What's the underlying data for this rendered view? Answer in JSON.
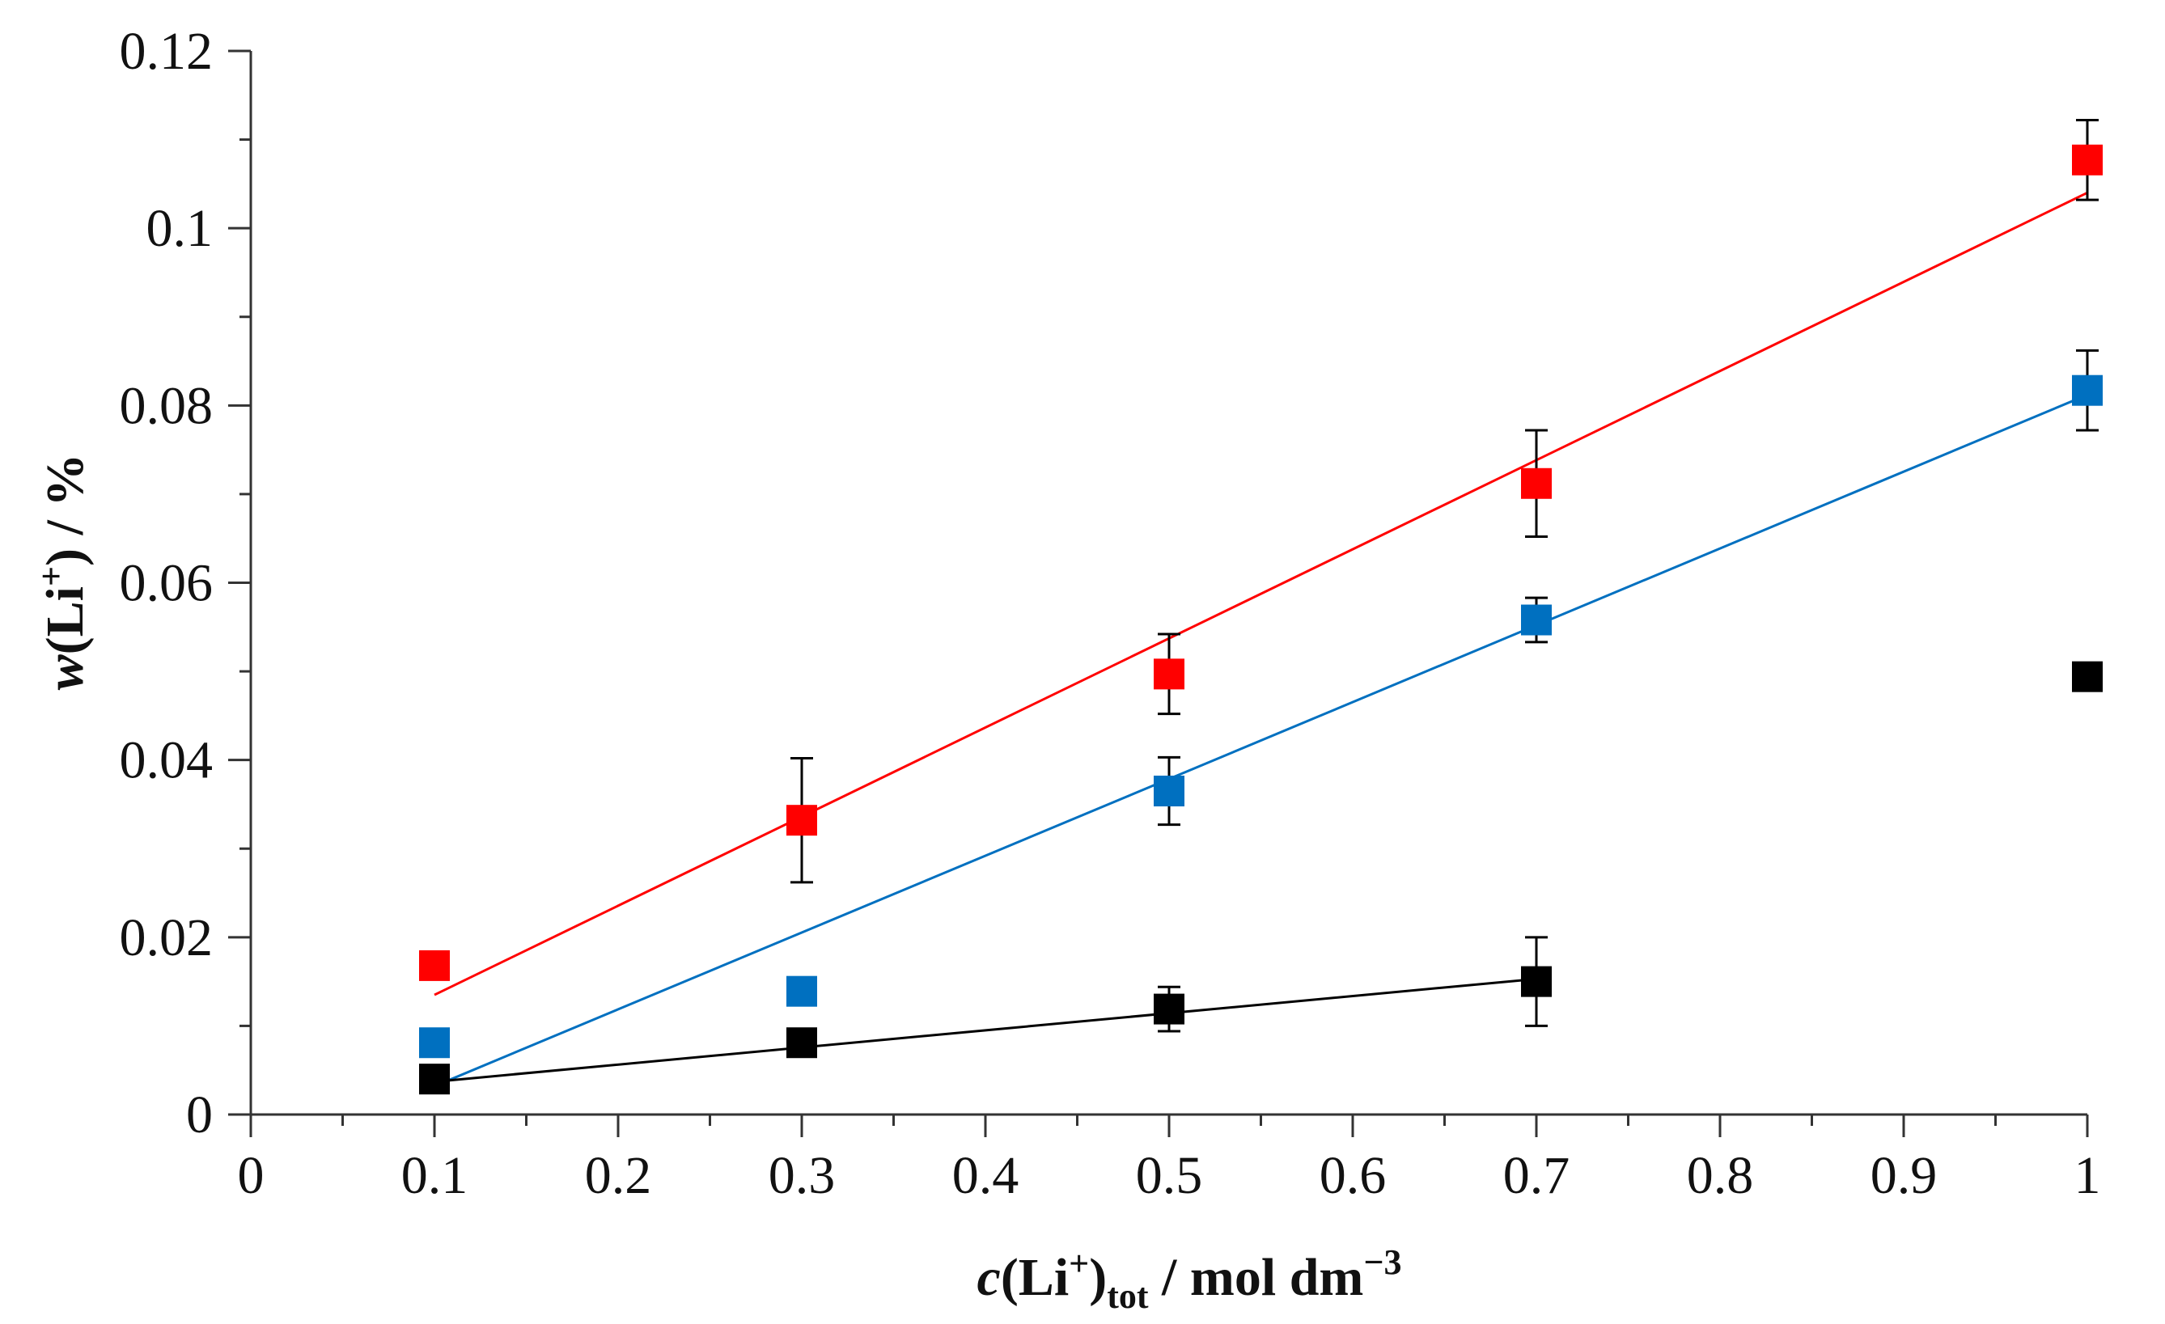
{
  "chart_data": {
    "type": "scatter",
    "title": "",
    "xlabel": {
      "var": "c",
      "open": "(Li",
      "sup": "+",
      "close": ")",
      "sub": "tot",
      "unit": " / mol dm",
      "unit_exp": "−3"
    },
    "ylabel": {
      "var": "w",
      "open": "(Li",
      "sup": "+",
      "rest": ") / %"
    },
    "xlim": [
      0,
      1
    ],
    "ylim": [
      0,
      0.12
    ],
    "x_ticks": [
      "0",
      "0.1",
      "0.2",
      "0.3",
      "0.4",
      "0.5",
      "0.6",
      "0.7",
      "0.8",
      "0.9",
      "1"
    ],
    "y_ticks": [
      "0",
      "0.02",
      "0.04",
      "0.06",
      "0.08",
      "0.1",
      "0.12"
    ],
    "grid": false,
    "legend": "none",
    "series": [
      {
        "name": "red",
        "color": "#ff0000",
        "x": [
          0.1,
          0.3,
          0.5,
          0.7,
          1.0
        ],
        "y": [
          0.0168,
          0.0332,
          0.0497,
          0.0712,
          0.1077
        ],
        "err": [
          null,
          0.007,
          0.0045,
          0.006,
          0.0045
        ],
        "fit": {
          "x1": 0.1,
          "y1": 0.0135,
          "x2": 1.0,
          "y2": 0.104
        }
      },
      {
        "name": "blue",
        "color": "#0070c0",
        "x": [
          0.1,
          0.3,
          0.5,
          0.7,
          1.0
        ],
        "y": [
          0.0081,
          0.0139,
          0.0365,
          0.0558,
          0.0817
        ],
        "err": [
          null,
          null,
          0.0038,
          0.0025,
          0.0045
        ],
        "fit": {
          "x1": 0.1,
          "y1": 0.0032,
          "x2": 1.0,
          "y2": 0.0812
        }
      },
      {
        "name": "black",
        "color": "#000000",
        "x": [
          0.1,
          0.3,
          0.5,
          0.7,
          1.0
        ],
        "y": [
          0.004,
          0.0081,
          0.0119,
          0.015,
          0.0494
        ],
        "err": [
          null,
          null,
          0.0025,
          0.005,
          null
        ],
        "fit": {
          "x1": 0.1,
          "y1": 0.0037,
          "x2": 0.7,
          "y2": 0.0153
        }
      }
    ]
  }
}
